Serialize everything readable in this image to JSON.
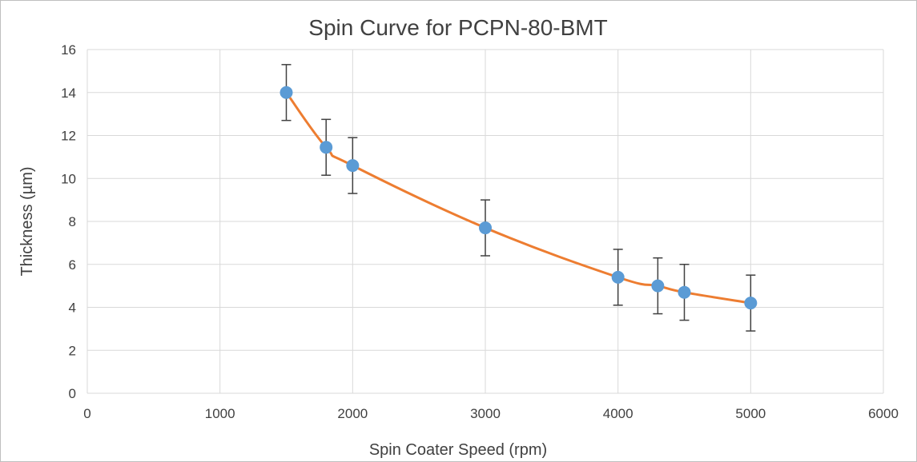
{
  "chart_data": {
    "type": "scatter",
    "title": "Spin Curve for PCPN-80-BMT",
    "xlabel": "Spin Coater Speed (rpm)",
    "ylabel": "Thickness (µm)",
    "xlim": [
      0,
      6000
    ],
    "ylim": [
      0,
      16
    ],
    "x_ticks": [
      0,
      1000,
      2000,
      3000,
      4000,
      5000,
      6000
    ],
    "y_ticks": [
      0,
      2,
      4,
      6,
      8,
      10,
      12,
      14,
      16
    ],
    "grid": true,
    "legend": "none",
    "line_style": "smoothed",
    "series": [
      {
        "x": [
          1500,
          1800,
          2000,
          3000,
          4000,
          4300,
          4500,
          5000
        ],
        "y": [
          14.0,
          11.45,
          10.6,
          7.7,
          5.4,
          5.0,
          4.7,
          4.2
        ],
        "error": [
          1.3,
          1.3,
          1.3,
          1.3,
          1.3,
          1.3,
          1.3,
          1.3
        ]
      }
    ],
    "colors": {
      "line": "#ED7D31",
      "marker": "#5B9BD5",
      "error_bar": "#404040",
      "grid": "#D9D9D9",
      "text": "#404040",
      "border": "#BFBFBF"
    }
  }
}
